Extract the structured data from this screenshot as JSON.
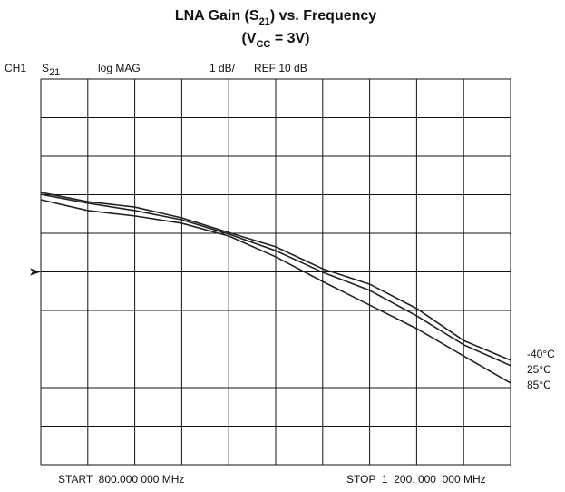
{
  "chart_data": {
    "type": "line",
    "title_parts": [
      "LNA Gain (S",
      "21",
      ") vs. Frequency"
    ],
    "subtitle_parts": [
      "(V",
      "CC",
      " = 3V)"
    ],
    "channel": "CH1",
    "param_parts": [
      "S",
      "21"
    ],
    "format": "log MAG",
    "scale": "1 dB/",
    "ref_label": "REF 10 dB",
    "ref": 10,
    "start_label": "START  800.000 000 MHz",
    "stop_label": "STOP  1  200. 000  000 MHz",
    "x": [
      800,
      840,
      880,
      920,
      960,
      1000,
      1040,
      1080,
      1120,
      1160,
      1200
    ],
    "xlim": [
      800,
      1200
    ],
    "xticks": [
      800,
      840,
      880,
      920,
      960,
      1000,
      1040,
      1080,
      1120,
      1160,
      1200
    ],
    "ylim": [
      5,
      15
    ],
    "yticks": [
      5,
      6,
      7,
      8,
      9,
      10,
      11,
      12,
      13,
      14,
      15
    ],
    "grid": true,
    "series": [
      {
        "name": "-40°C",
        "color": "#222222",
        "values": [
          12.06,
          11.82,
          11.68,
          11.4,
          11.02,
          10.65,
          10.08,
          9.68,
          9.05,
          8.22,
          7.71
        ]
      },
      {
        "name": "25°C",
        "color": "#222222",
        "values": [
          12.01,
          11.78,
          11.59,
          11.35,
          10.98,
          10.55,
          9.99,
          9.52,
          8.86,
          8.11,
          7.57
        ]
      },
      {
        "name": "85°C",
        "color": "#222222",
        "values": [
          11.87,
          11.59,
          11.45,
          11.26,
          10.93,
          10.39,
          9.75,
          9.14,
          8.53,
          7.82,
          7.12
        ]
      }
    ]
  }
}
